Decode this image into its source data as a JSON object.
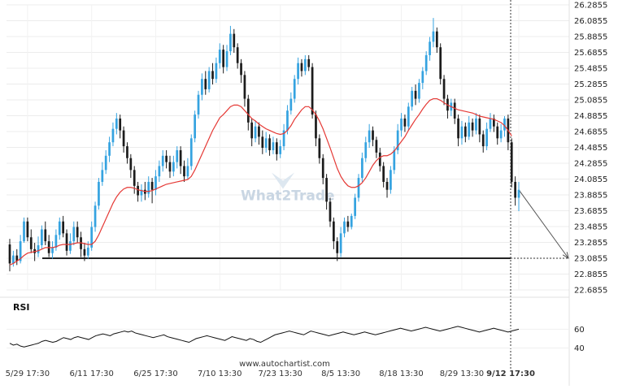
{
  "chart_data": [
    {
      "type": "candlestick",
      "title": "",
      "ylim": [
        22.6855,
        26.2855
      ],
      "y_ticks": [
        "26.2855",
        "26.0855",
        "25.8855",
        "25.6855",
        "25.4855",
        "25.2855",
        "25.0855",
        "24.8855",
        "24.6855",
        "24.4855",
        "24.2855",
        "24.0855",
        "23.8855",
        "23.6855",
        "23.4855",
        "23.2855",
        "23.0855",
        "22.8855",
        "22.6855"
      ],
      "x_labels": [
        "5/29 17:30",
        "6/11 17:30",
        "6/25 17:30",
        "7/10 13:30",
        "7/23 13:30",
        "8/5 13:30",
        "8/18 13:30",
        "8/29 13:30",
        "9/12 17:30"
      ],
      "highlight_label": "9/12 17:30",
      "candles": [
        [
          23.26,
          23.02,
          23.33,
          22.92
        ],
        [
          23.02,
          23.12,
          23.18,
          22.98
        ],
        [
          23.12,
          23.05,
          23.2,
          23.0
        ],
        [
          23.05,
          23.3,
          23.38,
          23.02
        ],
        [
          23.3,
          23.55,
          23.6,
          23.28
        ],
        [
          23.55,
          23.35,
          23.6,
          23.3
        ],
        [
          23.35,
          23.2,
          23.45,
          23.15
        ],
        [
          23.2,
          23.15,
          23.28,
          23.05
        ],
        [
          23.15,
          23.25,
          23.36,
          23.1
        ],
        [
          23.25,
          23.45,
          23.5,
          23.2
        ],
        [
          23.45,
          23.3,
          23.55,
          23.25
        ],
        [
          23.3,
          23.15,
          23.38,
          23.1
        ],
        [
          23.15,
          23.22,
          23.3,
          23.08
        ],
        [
          23.22,
          23.38,
          23.45,
          23.18
        ],
        [
          23.38,
          23.55,
          23.6,
          23.32
        ],
        [
          23.55,
          23.4,
          23.62,
          23.35
        ],
        [
          23.4,
          23.18,
          23.45,
          23.12
        ],
        [
          23.18,
          23.3,
          23.4,
          23.14
        ],
        [
          23.3,
          23.48,
          23.55,
          23.25
        ],
        [
          23.48,
          23.35,
          23.55,
          23.28
        ],
        [
          23.35,
          23.2,
          23.42,
          23.1
        ],
        [
          23.2,
          23.12,
          23.28,
          23.05
        ],
        [
          23.12,
          23.22,
          23.3,
          23.08
        ],
        [
          23.22,
          23.48,
          23.55,
          23.18
        ],
        [
          23.48,
          23.75,
          23.8,
          23.42
        ],
        [
          23.75,
          24.05,
          24.1,
          23.7
        ],
        [
          24.05,
          24.2,
          24.3,
          24.0
        ],
        [
          24.2,
          24.38,
          24.45,
          24.15
        ],
        [
          24.38,
          24.55,
          24.62,
          24.3
        ],
        [
          24.55,
          24.72,
          24.8,
          24.5
        ],
        [
          24.72,
          24.85,
          24.92,
          24.65
        ],
        [
          24.85,
          24.7,
          24.9,
          24.6
        ],
        [
          24.7,
          24.5,
          24.75,
          24.42
        ],
        [
          24.5,
          24.35,
          24.55,
          24.28
        ],
        [
          24.35,
          24.2,
          24.4,
          24.1
        ],
        [
          24.2,
          24.0,
          24.25,
          23.9
        ],
        [
          24.0,
          23.88,
          24.05,
          23.8
        ],
        [
          23.88,
          23.95,
          24.02,
          23.8
        ],
        [
          23.95,
          23.9,
          24.05,
          23.82
        ],
        [
          23.9,
          24.05,
          24.12,
          23.85
        ],
        [
          24.05,
          23.95,
          24.1,
          23.78
        ],
        [
          23.95,
          24.12,
          24.2,
          23.88
        ],
        [
          24.12,
          24.25,
          24.32,
          24.05
        ],
        [
          24.25,
          24.38,
          24.45,
          24.18
        ],
        [
          24.38,
          24.3,
          24.45,
          24.22
        ],
        [
          24.3,
          24.18,
          24.38,
          24.1
        ],
        [
          24.18,
          24.3,
          24.38,
          24.12
        ],
        [
          24.3,
          24.45,
          24.5,
          24.22
        ],
        [
          24.45,
          24.25,
          24.5,
          24.15
        ],
        [
          24.25,
          24.12,
          24.32,
          24.05
        ],
        [
          24.12,
          24.25,
          24.35,
          24.08
        ],
        [
          24.25,
          24.6,
          24.65,
          24.2
        ],
        [
          24.6,
          24.9,
          24.95,
          24.55
        ],
        [
          24.9,
          25.15,
          25.2,
          24.85
        ],
        [
          25.15,
          25.35,
          25.42,
          25.08
        ],
        [
          25.35,
          25.22,
          25.45,
          25.15
        ],
        [
          25.22,
          25.45,
          25.5,
          25.18
        ],
        [
          25.45,
          25.35,
          25.55,
          25.28
        ],
        [
          25.35,
          25.55,
          25.62,
          25.3
        ],
        [
          25.55,
          25.72,
          25.8,
          25.48
        ],
        [
          25.72,
          25.5,
          25.78,
          25.42
        ],
        [
          25.5,
          25.7,
          25.78,
          25.45
        ],
        [
          25.7,
          25.92,
          26.02,
          25.65
        ],
        [
          25.92,
          25.75,
          25.98,
          25.68
        ],
        [
          25.75,
          25.55,
          25.8,
          25.48
        ],
        [
          25.55,
          25.4,
          25.6,
          25.3
        ],
        [
          25.4,
          25.1,
          25.45,
          25.0
        ],
        [
          25.1,
          24.8,
          25.15,
          24.7
        ],
        [
          24.8,
          24.6,
          24.85,
          24.5
        ],
        [
          24.6,
          24.75,
          24.82,
          24.55
        ],
        [
          24.75,
          24.62,
          24.8,
          24.52
        ],
        [
          24.62,
          24.48,
          24.7,
          24.4
        ],
        [
          24.48,
          24.6,
          24.68,
          24.42
        ],
        [
          24.6,
          24.45,
          24.65,
          24.38
        ],
        [
          24.45,
          24.55,
          24.62,
          24.4
        ],
        [
          24.55,
          24.4,
          24.6,
          24.32
        ],
        [
          24.4,
          24.5,
          24.58,
          24.35
        ],
        [
          24.5,
          24.7,
          24.78,
          24.45
        ],
        [
          24.7,
          24.95,
          25.02,
          24.65
        ],
        [
          24.95,
          25.1,
          25.18,
          24.9
        ],
        [
          25.1,
          25.35,
          25.4,
          25.05
        ],
        [
          25.35,
          25.55,
          25.62,
          25.28
        ],
        [
          25.55,
          25.45,
          25.6,
          25.38
        ],
        [
          25.45,
          25.6,
          25.65,
          25.4
        ],
        [
          25.6,
          25.5,
          25.65,
          25.45
        ],
        [
          25.5,
          24.9,
          25.55,
          24.85
        ],
        [
          24.9,
          24.6,
          24.95,
          24.5
        ],
        [
          24.6,
          24.35,
          24.65,
          24.28
        ],
        [
          24.35,
          24.1,
          24.4,
          24.02
        ],
        [
          24.1,
          23.8,
          24.15,
          23.7
        ],
        [
          23.8,
          23.55,
          23.85,
          23.48
        ],
        [
          23.55,
          23.3,
          23.6,
          23.2
        ],
        [
          23.3,
          23.15,
          23.35,
          23.05
        ],
        [
          23.15,
          23.4,
          23.48,
          23.1
        ],
        [
          23.4,
          23.55,
          23.6,
          23.35
        ],
        [
          23.55,
          23.48,
          23.62,
          23.42
        ],
        [
          23.48,
          23.62,
          23.65,
          23.45
        ],
        [
          23.62,
          23.85,
          23.9,
          23.58
        ],
        [
          23.85,
          24.1,
          24.15,
          23.8
        ],
        [
          24.1,
          24.35,
          24.42,
          24.05
        ],
        [
          24.35,
          24.55,
          24.62,
          24.3
        ],
        [
          24.55,
          24.7,
          24.78,
          24.48
        ],
        [
          24.7,
          24.58,
          24.75,
          24.5
        ],
        [
          24.58,
          24.42,
          24.62,
          24.35
        ],
        [
          24.42,
          24.25,
          24.48,
          24.18
        ],
        [
          24.25,
          24.05,
          24.3,
          23.98
        ],
        [
          24.05,
          23.95,
          24.1,
          23.85
        ],
        [
          23.95,
          24.2,
          24.25,
          23.9
        ],
        [
          24.2,
          24.45,
          24.5,
          24.15
        ],
        [
          24.45,
          24.7,
          24.78,
          24.4
        ],
        [
          24.7,
          24.85,
          24.92,
          24.62
        ],
        [
          24.85,
          24.75,
          24.9,
          24.68
        ],
        [
          24.75,
          25.0,
          25.05,
          24.7
        ],
        [
          25.0,
          25.2,
          25.25,
          24.95
        ],
        [
          25.2,
          25.1,
          25.28,
          25.02
        ],
        [
          25.1,
          25.3,
          25.35,
          25.05
        ],
        [
          25.3,
          25.45,
          25.5,
          25.22
        ],
        [
          25.45,
          25.65,
          25.7,
          25.4
        ],
        [
          25.65,
          25.82,
          25.88,
          25.58
        ],
        [
          25.82,
          25.95,
          26.12,
          25.75
        ],
        [
          25.95,
          25.75,
          26.0,
          25.68
        ],
        [
          25.75,
          25.35,
          25.8,
          25.28
        ],
        [
          25.35,
          25.1,
          25.4,
          25.02
        ],
        [
          25.1,
          24.95,
          25.15,
          24.85
        ],
        [
          24.95,
          25.05,
          25.1,
          24.88
        ],
        [
          25.05,
          24.85,
          25.1,
          24.78
        ],
        [
          24.85,
          24.6,
          24.9,
          24.5
        ],
        [
          24.6,
          24.75,
          24.82,
          24.52
        ],
        [
          24.75,
          24.62,
          24.8,
          24.55
        ],
        [
          24.62,
          24.8,
          24.88,
          24.58
        ],
        [
          24.8,
          24.7,
          24.85,
          24.62
        ],
        [
          24.7,
          24.85,
          24.92,
          24.65
        ],
        [
          24.85,
          24.65,
          24.9,
          24.55
        ],
        [
          24.65,
          24.5,
          24.7,
          24.42
        ],
        [
          24.5,
          24.72,
          24.8,
          24.45
        ],
        [
          24.72,
          24.85,
          24.92,
          24.68
        ],
        [
          24.85,
          24.75,
          24.9,
          24.68
        ],
        [
          24.75,
          24.6,
          24.8,
          24.52
        ],
        [
          24.6,
          24.7,
          24.78,
          24.55
        ],
        [
          24.7,
          24.85,
          24.88,
          24.62
        ],
        [
          24.85,
          24.55,
          24.9,
          24.45
        ],
        [
          24.55,
          24.05,
          24.6,
          23.98
        ],
        [
          24.05,
          23.85,
          24.12,
          23.75
        ],
        [
          23.85,
          23.95,
          24.05,
          23.68
        ]
      ],
      "moving_average": [
        23.0,
        23.02,
        23.05,
        23.08,
        23.12,
        23.15,
        23.16,
        23.17,
        23.18,
        23.2,
        23.22,
        23.22,
        23.22,
        23.23,
        23.25,
        23.26,
        23.26,
        23.26,
        23.27,
        23.28,
        23.28,
        23.27,
        23.26,
        23.26,
        23.3,
        23.38,
        23.48,
        23.58,
        23.68,
        23.78,
        23.86,
        23.92,
        23.96,
        23.98,
        23.98,
        23.97,
        23.95,
        23.94,
        23.93,
        23.93,
        23.94,
        23.96,
        23.98,
        24.0,
        24.02,
        24.03,
        24.04,
        24.05,
        24.06,
        24.07,
        24.08,
        24.12,
        24.2,
        24.3,
        24.4,
        24.5,
        24.6,
        24.7,
        24.78,
        24.86,
        24.9,
        24.95,
        25.0,
        25.02,
        25.02,
        25.0,
        24.95,
        24.9,
        24.85,
        24.82,
        24.78,
        24.75,
        24.72,
        24.7,
        24.68,
        24.66,
        24.65,
        24.66,
        24.7,
        24.76,
        24.84,
        24.9,
        24.96,
        25.0,
        25.0,
        24.96,
        24.9,
        24.82,
        24.72,
        24.6,
        24.48,
        24.35,
        24.22,
        24.12,
        24.05,
        24.0,
        23.98,
        23.98,
        24.0,
        24.04,
        24.1,
        24.18,
        24.26,
        24.32,
        24.36,
        24.38,
        24.38,
        24.4,
        24.44,
        24.5,
        24.56,
        24.62,
        24.7,
        24.77,
        24.84,
        24.9,
        24.97,
        25.03,
        25.08,
        25.1,
        25.1,
        25.08,
        25.05,
        25.02,
        25.0,
        24.98,
        24.96,
        24.95,
        24.94,
        24.93,
        24.92,
        24.9,
        24.88,
        24.87,
        24.86,
        24.85,
        24.84,
        24.82,
        24.8,
        24.76,
        24.7,
        24.63
      ],
      "support_level": 23.0855,
      "forecast_target": 23.0855,
      "watermark": "What2Trade"
    },
    {
      "type": "line",
      "title": "RSI",
      "ylim": [
        30,
        75
      ],
      "y_ticks": [
        "60",
        "40"
      ],
      "values": [
        45,
        43,
        44,
        42,
        41,
        42,
        43,
        44,
        45,
        47,
        48,
        47,
        46,
        47,
        49,
        51,
        50,
        49,
        51,
        52,
        51,
        50,
        49,
        51,
        53,
        54,
        55,
        54,
        53,
        55,
        56,
        57,
        58,
        57,
        58,
        56,
        55,
        54,
        53,
        52,
        51,
        52,
        53,
        54,
        52,
        51,
        50,
        49,
        48,
        47,
        46,
        48,
        50,
        51,
        52,
        53,
        52,
        51,
        50,
        49,
        48,
        50,
        52,
        51,
        50,
        49,
        48,
        50,
        49,
        47,
        46,
        48,
        50,
        52,
        54,
        55,
        56,
        57,
        58,
        57,
        56,
        55,
        54,
        56,
        58,
        57,
        56,
        55,
        54,
        53,
        54,
        55,
        56,
        57,
        56,
        55,
        54,
        55,
        56,
        57,
        56,
        55,
        54,
        55,
        56,
        57,
        58,
        59,
        60,
        61,
        60,
        59,
        58,
        59,
        60,
        61,
        62,
        61,
        60,
        59,
        58,
        59,
        60,
        61,
        62,
        63,
        62,
        61,
        60,
        59,
        58,
        57,
        58,
        59,
        60,
        61,
        60,
        59,
        58,
        57,
        58,
        59,
        60
      ]
    }
  ],
  "footer": {
    "credit": "www.autochartist.com"
  }
}
